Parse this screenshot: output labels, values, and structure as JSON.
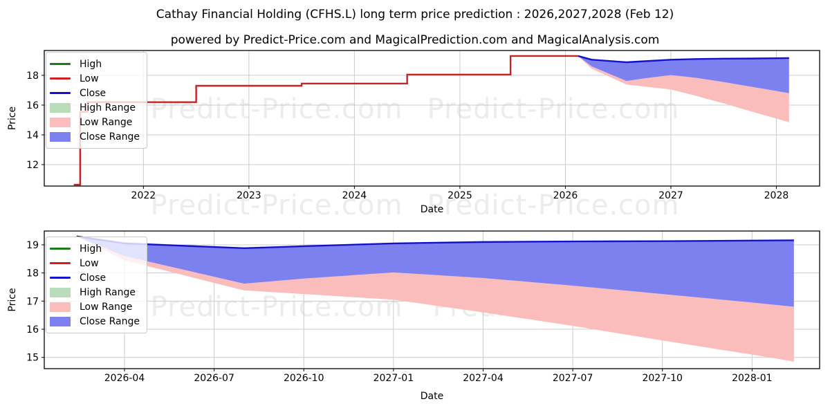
{
  "title": "Cathay Financial Holding (CFHS.L) long term price prediction : 2026,2027,2028 (Feb 12)",
  "subtitle": "powered by Predict-Price.com and MagicalPrediction.com and MagicalAnalysis.com",
  "watermark_text": "Predict-Price.com",
  "colors": {
    "high_line": "#1a7d1a",
    "low_line": "#cc2121",
    "close_line": "#1212cc",
    "high_range": "#b9dcb9",
    "low_range": "#fbbcbc",
    "close_range": "#7d80ef",
    "close_range_light": "#e0e2f9",
    "grid": "#cccccc",
    "axis": "#000000",
    "watermark": "#ececec"
  },
  "legend": {
    "items": [
      {
        "label": "High",
        "type": "line",
        "color": "#1a7d1a"
      },
      {
        "label": "Low",
        "type": "line",
        "color": "#cc2121"
      },
      {
        "label": "Close",
        "type": "line",
        "color": "#1212cc"
      },
      {
        "label": "High Range",
        "type": "patch",
        "color": "#b9dcb9"
      },
      {
        "label": "Low Range",
        "type": "patch",
        "color": "#fbbcbc"
      },
      {
        "label": "Close Range",
        "type": "patch",
        "color": "#7d80ef"
      }
    ]
  },
  "chart_data": [
    {
      "type": "line",
      "role": "history-and-prediction",
      "xlabel": "Date",
      "ylabel": "Price",
      "x_mode": "x_year",
      "xlim": [
        2021.06,
        2028.41
      ],
      "ylim": [
        10.56,
        19.67
      ],
      "grid": true,
      "legend_position": "upper-left",
      "x_ticks": [
        {
          "v": 2022,
          "label": "2022"
        },
        {
          "v": 2023,
          "label": "2023"
        },
        {
          "v": 2024,
          "label": "2024"
        },
        {
          "v": 2025,
          "label": "2025"
        },
        {
          "v": 2026,
          "label": "2026"
        },
        {
          "v": 2027,
          "label": "2027"
        },
        {
          "v": 2028,
          "label": "2028"
        }
      ],
      "y_ticks": [
        {
          "v": 12,
          "label": "12"
        },
        {
          "v": 14,
          "label": "14"
        },
        {
          "v": 16,
          "label": "16"
        },
        {
          "v": 18,
          "label": "18"
        }
      ]
    },
    {
      "type": "line",
      "role": "prediction-detail",
      "xlabel": "Date",
      "ylabel": "Price",
      "x_mode": "x_month",
      "xlim": [
        0.315,
        26.26
      ],
      "ylim": [
        14.6,
        19.49
      ],
      "grid": true,
      "legend_position": "upper-left",
      "x_ticks": [
        {
          "v": 3,
          "label": "2026-04"
        },
        {
          "v": 6,
          "label": "2026-07"
        },
        {
          "v": 9,
          "label": "2026-10"
        },
        {
          "v": 12,
          "label": "2027-01"
        },
        {
          "v": 15,
          "label": "2027-04"
        },
        {
          "v": 18,
          "label": "2027-07"
        },
        {
          "v": 21,
          "label": "2027-10"
        },
        {
          "v": 24,
          "label": "2028-01"
        }
      ],
      "y_ticks": [
        {
          "v": 15,
          "label": "15"
        },
        {
          "v": 16,
          "label": "16"
        },
        {
          "v": 17,
          "label": "17"
        },
        {
          "v": 18,
          "label": "18"
        },
        {
          "v": 19,
          "label": "19"
        }
      ]
    }
  ],
  "history_low": {
    "name": "Low",
    "points_year_price": [
      [
        2021.34,
        10.65
      ],
      [
        2021.4,
        10.65
      ],
      [
        2021.4,
        15.55
      ],
      [
        2021.47,
        15.55
      ],
      [
        2021.47,
        16.2
      ],
      [
        2022.5,
        16.2
      ],
      [
        2022.5,
        17.3
      ],
      [
        2023.5,
        17.3
      ],
      [
        2023.5,
        17.45
      ],
      [
        2024.5,
        17.45
      ],
      [
        2024.5,
        18.05
      ],
      [
        2025.48,
        18.05
      ],
      [
        2025.48,
        19.3
      ],
      [
        2026.12,
        19.3
      ]
    ]
  },
  "prediction": {
    "dates": [
      "2026-02-12",
      "2026-04-01",
      "2026-08-01",
      "2026-10-01",
      "2027-01-01",
      "2027-04-01",
      "2027-07-01",
      "2027-10-01",
      "2028-01-01",
      "2028-02-12"
    ],
    "x_year": [
      2026.12,
      2026.25,
      2026.58,
      2026.75,
      2027.0,
      2027.25,
      2027.5,
      2027.75,
      2028.0,
      2028.12
    ],
    "x_month": [
      1.4,
      3,
      7,
      9,
      12,
      15,
      18,
      21,
      24,
      25.4
    ],
    "close": [
      19.3,
      19.05,
      18.88,
      18.95,
      19.05,
      19.1,
      19.12,
      19.13,
      19.15,
      19.16
    ],
    "close_upper": [
      19.3,
      19.12,
      18.88,
      18.95,
      19.05,
      19.1,
      19.12,
      19.13,
      19.15,
      19.16
    ],
    "close_lower": [
      19.3,
      18.6,
      17.62,
      17.8,
      18.02,
      17.82,
      17.55,
      17.25,
      16.95,
      16.8
    ],
    "low_lower": [
      19.3,
      18.45,
      17.38,
      17.25,
      17.05,
      16.6,
      16.12,
      15.6,
      15.1,
      14.85
    ]
  }
}
